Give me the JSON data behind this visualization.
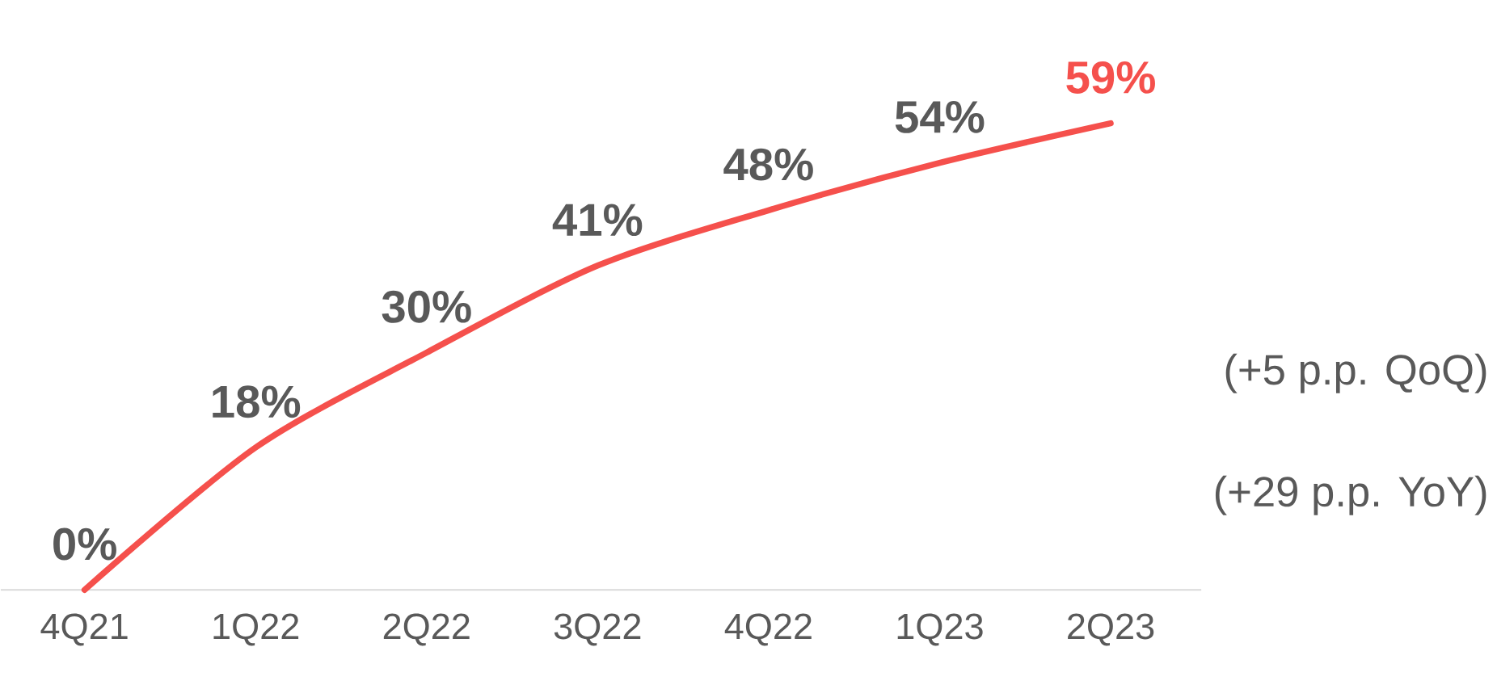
{
  "chart_data": {
    "type": "line",
    "categories": [
      "4Q21",
      "1Q22",
      "2Q22",
      "3Q22",
      "4Q22",
      "1Q23",
      "2Q23"
    ],
    "series": [
      {
        "color": "#f5504c",
        "values": [
          0,
          18,
          30,
          41,
          48,
          54,
          59
        ],
        "value_labels": [
          "0%",
          "18%",
          "30%",
          "41%",
          "48%",
          "54%",
          "59%"
        ]
      }
    ],
    "tick_labels": "x",
    "annotations": [
      "(+5 p.p. QoQ)",
      "(+29 p.p. YoY)"
    ]
  }
}
